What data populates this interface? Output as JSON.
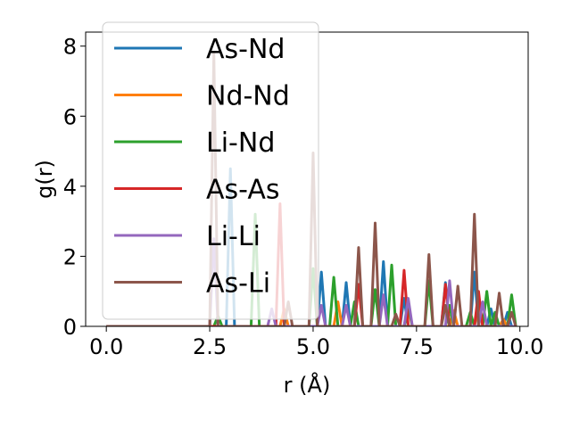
{
  "chart_data": {
    "type": "line",
    "xlabel": "r (Å)",
    "ylabel": "g(r)",
    "xlim": [
      -0.5,
      10.2
    ],
    "ylim": [
      0,
      8.4
    ],
    "xticks": [
      0.0,
      2.5,
      5.0,
      7.5,
      10.0
    ],
    "xtick_labels": [
      "0.0",
      "2.5",
      "5.0",
      "7.5",
      "10.0"
    ],
    "yticks": [
      0,
      2,
      4,
      6,
      8
    ],
    "ytick_labels": [
      "0",
      "2",
      "4",
      "6",
      "8"
    ],
    "grid": false,
    "legend_position": "upper-left",
    "series": [
      {
        "name": "As-Nd",
        "color": "#1f77b4",
        "peaks": [
          [
            3.0,
            4.5
          ],
          [
            5.2,
            1.55
          ],
          [
            5.8,
            1.25
          ],
          [
            6.7,
            1.85
          ],
          [
            7.2,
            0.8
          ],
          [
            8.2,
            1.25
          ],
          [
            8.9,
            1.55
          ],
          [
            9.3,
            0.5
          ],
          [
            9.7,
            0.4
          ]
        ]
      },
      {
        "name": "Nd-Nd",
        "color": "#ff7f0e",
        "peaks": [
          [
            4.3,
            0.5
          ],
          [
            5.6,
            0.7
          ],
          [
            7.3,
            0.5
          ],
          [
            8.4,
            0.45
          ],
          [
            9.0,
            0.6
          ],
          [
            9.6,
            0.2
          ]
        ]
      },
      {
        "name": "Li-Nd",
        "color": "#2ca02c",
        "peaks": [
          [
            2.7,
            0.3
          ],
          [
            3.6,
            3.2
          ],
          [
            5.0,
            1.65
          ],
          [
            5.5,
            1.4
          ],
          [
            6.0,
            0.7
          ],
          [
            6.5,
            1.05
          ],
          [
            6.9,
            1.75
          ],
          [
            7.3,
            0.6
          ],
          [
            7.8,
            1.3
          ],
          [
            8.3,
            0.6
          ],
          [
            8.8,
            0.4
          ],
          [
            9.2,
            1.0
          ],
          [
            9.4,
            0.4
          ],
          [
            9.8,
            0.9
          ]
        ]
      },
      {
        "name": "As-As",
        "color": "#d62728",
        "peaks": [
          [
            4.2,
            3.5
          ],
          [
            6.1,
            1.2
          ],
          [
            7.2,
            1.6
          ],
          [
            8.2,
            1.2
          ],
          [
            9.0,
            1.0
          ]
        ]
      },
      {
        "name": "Li-Li",
        "color": "#9467bd",
        "peaks": [
          [
            2.6,
            2.5
          ],
          [
            4.0,
            0.5
          ],
          [
            5.2,
            0.6
          ],
          [
            5.8,
            0.6
          ],
          [
            6.7,
            0.9
          ],
          [
            7.3,
            0.8
          ],
          [
            8.3,
            1.3
          ],
          [
            9.1,
            0.7
          ]
        ]
      },
      {
        "name": "As-Li",
        "color": "#8c564b",
        "peaks": [
          [
            2.6,
            7.8
          ],
          [
            4.4,
            0.7
          ],
          [
            5.0,
            4.95
          ],
          [
            6.1,
            2.25
          ],
          [
            6.5,
            2.95
          ],
          [
            7.0,
            0.35
          ],
          [
            7.8,
            2.05
          ],
          [
            8.2,
            0.6
          ],
          [
            8.5,
            1.15
          ],
          [
            8.9,
            3.2
          ],
          [
            9.5,
            0.95
          ],
          [
            9.8,
            0.4
          ]
        ]
      }
    ]
  }
}
